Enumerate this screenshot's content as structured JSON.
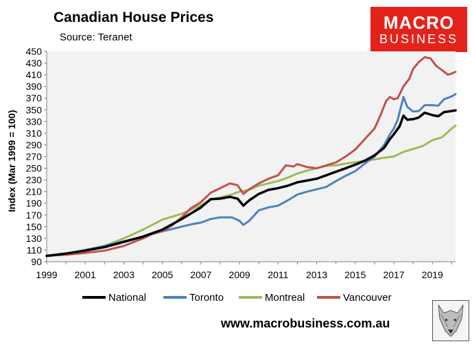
{
  "header": {
    "title": "Canadian House Prices",
    "source": "Source: Teranet"
  },
  "logo": {
    "line1": "MACRO",
    "line2": "BUSINESS"
  },
  "footer": {
    "url": "www.macrobusiness.com.au"
  },
  "chart_data": {
    "type": "line",
    "title": "Canadian House Prices",
    "subtitle": "Source: Teranet",
    "ylabel": "Index (Mar 1999 = 100)",
    "xlabel": "",
    "xlim": [
      1999,
      2020.2
    ],
    "ylim": [
      90,
      450
    ],
    "yticks": [
      90,
      110,
      130,
      150,
      170,
      190,
      210,
      230,
      250,
      270,
      290,
      310,
      330,
      350,
      370,
      390,
      410,
      430,
      450
    ],
    "xticks": [
      1999,
      2001,
      2003,
      2005,
      2007,
      2009,
      2011,
      2013,
      2015,
      2017,
      2019
    ],
    "grid": false,
    "plot_background": "#f2f2f2",
    "legend_position": "bottom",
    "series": [
      {
        "name": "National",
        "color": "#000000",
        "points": [
          [
            1999,
            100
          ],
          [
            2000,
            104
          ],
          [
            2001,
            109
          ],
          [
            2002,
            115
          ],
          [
            2003,
            124
          ],
          [
            2004,
            133
          ],
          [
            2005,
            145
          ],
          [
            2006,
            163
          ],
          [
            2007,
            183
          ],
          [
            2007.5,
            197
          ],
          [
            2008,
            198
          ],
          [
            2008.5,
            201
          ],
          [
            2008.9,
            198
          ],
          [
            2009.2,
            186
          ],
          [
            2009.5,
            195
          ],
          [
            2010,
            206
          ],
          [
            2010.5,
            213
          ],
          [
            2011,
            216
          ],
          [
            2011.5,
            220
          ],
          [
            2012,
            226
          ],
          [
            2012.5,
            229
          ],
          [
            2013,
            232
          ],
          [
            2013.5,
            238
          ],
          [
            2014,
            244
          ],
          [
            2014.5,
            250
          ],
          [
            2015,
            256
          ],
          [
            2015.5,
            263
          ],
          [
            2016,
            272
          ],
          [
            2016.5,
            285
          ],
          [
            2016.8,
            300
          ],
          [
            2017,
            308
          ],
          [
            2017.3,
            322
          ],
          [
            2017.5,
            340
          ],
          [
            2017.7,
            333
          ],
          [
            2018,
            334
          ],
          [
            2018.3,
            337
          ],
          [
            2018.6,
            345
          ],
          [
            2019,
            341
          ],
          [
            2019.3,
            339
          ],
          [
            2019.6,
            346
          ],
          [
            2020,
            348
          ],
          [
            2020.2,
            349
          ]
        ]
      },
      {
        "name": "Toronto",
        "color": "#4f81bd",
        "points": [
          [
            1999,
            100
          ],
          [
            2000,
            104
          ],
          [
            2001,
            110
          ],
          [
            2002,
            117
          ],
          [
            2003,
            125
          ],
          [
            2004,
            133
          ],
          [
            2005,
            142
          ],
          [
            2006,
            150
          ],
          [
            2006.5,
            154
          ],
          [
            2007,
            157
          ],
          [
            2007.5,
            163
          ],
          [
            2008,
            166
          ],
          [
            2008.6,
            166
          ],
          [
            2009,
            160
          ],
          [
            2009.2,
            153
          ],
          [
            2009.5,
            160
          ],
          [
            2010,
            178
          ],
          [
            2010.5,
            183
          ],
          [
            2011,
            186
          ],
          [
            2011.5,
            195
          ],
          [
            2012,
            205
          ],
          [
            2012.5,
            210
          ],
          [
            2013,
            214
          ],
          [
            2013.5,
            218
          ],
          [
            2014,
            228
          ],
          [
            2014.5,
            237
          ],
          [
            2015,
            245
          ],
          [
            2015.5,
            258
          ],
          [
            2016,
            270
          ],
          [
            2016.5,
            290
          ],
          [
            2016.8,
            308
          ],
          [
            2017,
            318
          ],
          [
            2017.2,
            333
          ],
          [
            2017.5,
            372
          ],
          [
            2017.7,
            355
          ],
          [
            2018,
            347
          ],
          [
            2018.3,
            348
          ],
          [
            2018.6,
            358
          ],
          [
            2019,
            358
          ],
          [
            2019.3,
            357
          ],
          [
            2019.6,
            368
          ],
          [
            2020,
            373
          ],
          [
            2020.2,
            377
          ]
        ]
      },
      {
        "name": "Montreal",
        "color": "#9bbb59",
        "points": [
          [
            1999,
            100
          ],
          [
            2000,
            103
          ],
          [
            2001,
            108
          ],
          [
            2002,
            117
          ],
          [
            2003,
            130
          ],
          [
            2004,
            145
          ],
          [
            2005,
            162
          ],
          [
            2006,
            172
          ],
          [
            2007,
            187
          ],
          [
            2007.5,
            196
          ],
          [
            2008,
            200
          ],
          [
            2008.5,
            204
          ],
          [
            2009,
            210
          ],
          [
            2009.5,
            213
          ],
          [
            2010,
            220
          ],
          [
            2010.5,
            224
          ],
          [
            2011,
            228
          ],
          [
            2011.5,
            234
          ],
          [
            2012,
            241
          ],
          [
            2012.5,
            246
          ],
          [
            2013,
            250
          ],
          [
            2013.5,
            254
          ],
          [
            2014,
            255
          ],
          [
            2014.5,
            258
          ],
          [
            2015,
            260
          ],
          [
            2015.5,
            263
          ],
          [
            2016,
            265
          ],
          [
            2016.5,
            268
          ],
          [
            2017,
            270
          ],
          [
            2017.5,
            278
          ],
          [
            2018,
            283
          ],
          [
            2018.5,
            288
          ],
          [
            2019,
            298
          ],
          [
            2019.5,
            303
          ],
          [
            2020,
            318
          ],
          [
            2020.2,
            323
          ]
        ]
      },
      {
        "name": "Vancouver",
        "color": "#c0504d",
        "points": [
          [
            1999,
            100
          ],
          [
            2000,
            102
          ],
          [
            2001,
            105
          ],
          [
            2002,
            109
          ],
          [
            2003,
            117
          ],
          [
            2004,
            130
          ],
          [
            2004.5,
            138
          ],
          [
            2005,
            143
          ],
          [
            2005.5,
            152
          ],
          [
            2006,
            166
          ],
          [
            2006.5,
            182
          ],
          [
            2007,
            192
          ],
          [
            2007.5,
            208
          ],
          [
            2008,
            216
          ],
          [
            2008.5,
            224
          ],
          [
            2008.9,
            221
          ],
          [
            2009.2,
            206
          ],
          [
            2009.5,
            214
          ],
          [
            2010,
            224
          ],
          [
            2010.5,
            232
          ],
          [
            2011,
            238
          ],
          [
            2011.4,
            255
          ],
          [
            2011.8,
            253
          ],
          [
            2012,
            257
          ],
          [
            2012.5,
            252
          ],
          [
            2013,
            250
          ],
          [
            2013.5,
            255
          ],
          [
            2014,
            260
          ],
          [
            2014.5,
            270
          ],
          [
            2015,
            282
          ],
          [
            2015.5,
            300
          ],
          [
            2016,
            318
          ],
          [
            2016.3,
            340
          ],
          [
            2016.6,
            365
          ],
          [
            2016.8,
            372
          ],
          [
            2017,
            368
          ],
          [
            2017.2,
            370
          ],
          [
            2017.5,
            390
          ],
          [
            2017.8,
            403
          ],
          [
            2018,
            420
          ],
          [
            2018.3,
            432
          ],
          [
            2018.6,
            440
          ],
          [
            2018.9,
            438
          ],
          [
            2019.2,
            425
          ],
          [
            2019.5,
            418
          ],
          [
            2019.8,
            410
          ],
          [
            2020,
            412
          ],
          [
            2020.2,
            415
          ]
        ]
      }
    ]
  }
}
